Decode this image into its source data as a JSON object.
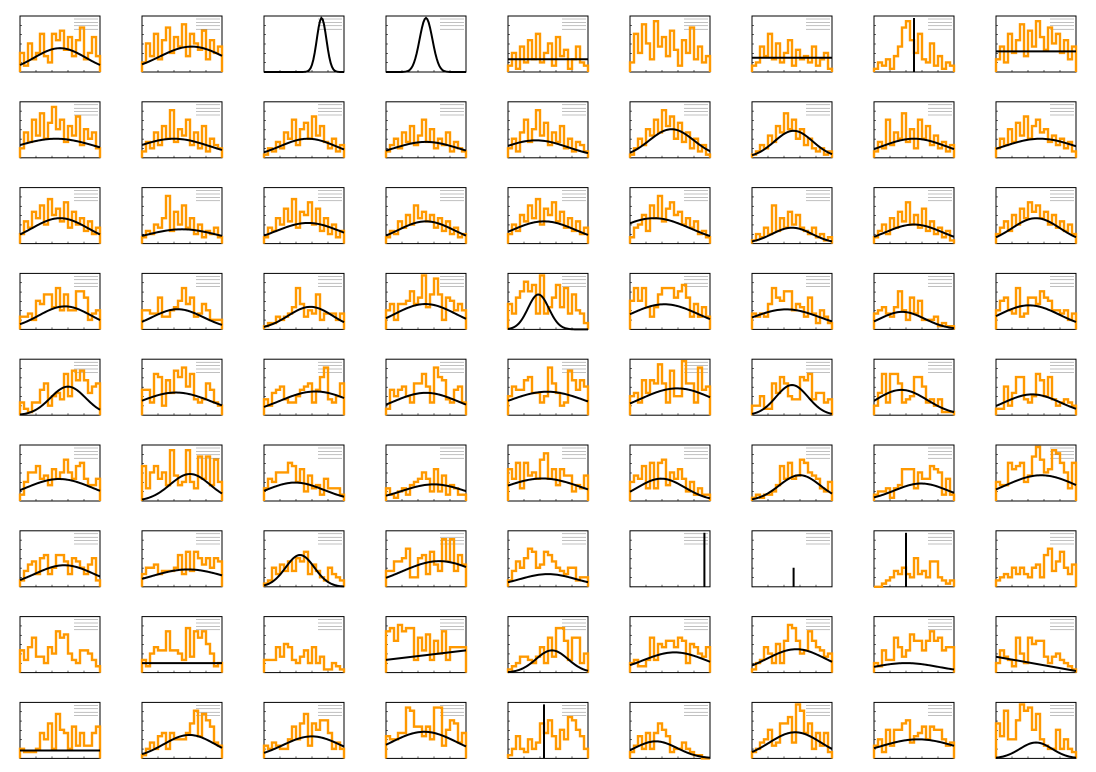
{
  "figure": {
    "rows": 9,
    "cols": 9,
    "histogram_color": "#ff9900",
    "fit_color": "#000000"
  },
  "chart_data": [
    {
      "type": "histogram",
      "panel": 1,
      "values": [
        6,
        2,
        9,
        4,
        6,
        12,
        5,
        3,
        12,
        10,
        13,
        7,
        11,
        5,
        10,
        14,
        4,
        6,
        11,
        5
      ],
      "fit": {
        "shape": "gauss",
        "amp": 7.5,
        "mu": 0.5,
        "sigma": 0.32
      }
    },
    {
      "type": "histogram",
      "panel": 2,
      "values": [
        3,
        9,
        5,
        12,
        4,
        10,
        14,
        6,
        11,
        8,
        15,
        5,
        12,
        9,
        7,
        13,
        4,
        10,
        6,
        8
      ],
      "fit": {
        "shape": "gauss",
        "amp": 8,
        "mu": 0.62,
        "sigma": 0.4
      }
    },
    {
      "type": "histogram",
      "panel": 3,
      "values": [
        0,
        0,
        0,
        0,
        0,
        0,
        0,
        0,
        0,
        0,
        0,
        0,
        0,
        0,
        0,
        0,
        0,
        0,
        0,
        0
      ],
      "fit": {
        "shape": "gauss",
        "amp": 17,
        "mu": 0.72,
        "sigma": 0.06
      }
    },
    {
      "type": "histogram",
      "panel": 4,
      "values": [
        0,
        0,
        0,
        0,
        0,
        0,
        0,
        0,
        0,
        0,
        0,
        0,
        0,
        0,
        0,
        0,
        0,
        0,
        0,
        0
      ],
      "fit": {
        "shape": "gauss",
        "amp": 17,
        "mu": 0.5,
        "sigma": 0.08
      }
    },
    {
      "type": "histogram",
      "panel": 5,
      "values": [
        2,
        6,
        1,
        8,
        3,
        10,
        4,
        12,
        3,
        6,
        9,
        2,
        11,
        5,
        7,
        1,
        4,
        8,
        3,
        2
      ],
      "fit": {
        "shape": "flat",
        "amp": 4
      }
    },
    {
      "type": "histogram",
      "panel": 6,
      "values": [
        3,
        12,
        6,
        15,
        9,
        4,
        16,
        8,
        11,
        5,
        13,
        7,
        2,
        10,
        6,
        14,
        4,
        8,
        3,
        5
      ],
      "fit": {
        "shape": "none"
      }
    },
    {
      "type": "histogram",
      "panel": 7,
      "values": [
        2,
        3,
        8,
        5,
        12,
        4,
        9,
        3,
        6,
        10,
        2,
        7,
        4,
        5,
        3,
        8,
        2,
        4,
        6,
        1
      ],
      "fit": {
        "shape": "flat",
        "amp": 4.5
      }
    },
    {
      "type": "histogram",
      "panel": 8,
      "values": [
        1,
        3,
        2,
        4,
        1,
        5,
        8,
        14,
        16,
        10,
        6,
        12,
        4,
        3,
        9,
        2,
        5,
        1,
        3,
        2
      ],
      "fit": {
        "shape": "spike",
        "amp": 17,
        "mu": 0.5
      }
    },
    {
      "type": "histogram",
      "panel": 9,
      "values": [
        4,
        8,
        3,
        12,
        6,
        10,
        15,
        5,
        13,
        8,
        16,
        11,
        7,
        14,
        9,
        12,
        6,
        10,
        4,
        8
      ],
      "fit": {
        "shape": "flat",
        "amp": 6.5
      }
    },
    {
      "type": "histogram",
      "panel": 10,
      "values": [
        3,
        8,
        5,
        12,
        7,
        14,
        6,
        11,
        16,
        9,
        12,
        5,
        10,
        7,
        13,
        4,
        9,
        6,
        8,
        3
      ],
      "fit": {
        "shape": "gauss",
        "amp": 6,
        "mu": 0.45,
        "sigma": 0.5
      }
    },
    {
      "type": "histogram",
      "panel": 11,
      "values": [
        2,
        5,
        3,
        8,
        4,
        10,
        6,
        15,
        5,
        9,
        7,
        12,
        4,
        8,
        3,
        10,
        2,
        6,
        4,
        3
      ],
      "fit": {
        "shape": "gauss",
        "amp": 6,
        "mu": 0.4,
        "sigma": 0.45
      }
    },
    {
      "type": "histogram",
      "panel": 12,
      "values": [
        1,
        3,
        2,
        5,
        3,
        8,
        6,
        12,
        4,
        9,
        11,
        6,
        13,
        7,
        10,
        5,
        3,
        6,
        2,
        4
      ],
      "fit": {
        "shape": "gauss",
        "amp": 6,
        "mu": 0.55,
        "sigma": 0.35
      }
    },
    {
      "type": "histogram",
      "panel": 13,
      "values": [
        2,
        4,
        6,
        3,
        8,
        5,
        10,
        4,
        7,
        12,
        5,
        9,
        3,
        6,
        4,
        8,
        2,
        5,
        3,
        2
      ],
      "fit": {
        "shape": "gauss",
        "amp": 5,
        "mu": 0.5,
        "sigma": 0.4
      }
    },
    {
      "type": "histogram",
      "panel": 14,
      "values": [
        3,
        6,
        2,
        8,
        12,
        5,
        9,
        15,
        7,
        11,
        4,
        8,
        5,
        10,
        3,
        6,
        2,
        5,
        4,
        2
      ],
      "fit": {
        "shape": "gauss",
        "amp": 5.5,
        "mu": 0.35,
        "sigma": 0.4
      }
    },
    {
      "type": "histogram",
      "panel": 15,
      "values": [
        1,
        3,
        6,
        4,
        9,
        7,
        12,
        8,
        15,
        10,
        13,
        6,
        11,
        5,
        8,
        3,
        6,
        2,
        4,
        1
      ],
      "fit": {
        "shape": "gauss",
        "amp": 9,
        "mu": 0.52,
        "sigma": 0.28
      }
    },
    {
      "type": "histogram",
      "panel": 16,
      "values": [
        1,
        2,
        4,
        3,
        7,
        5,
        10,
        8,
        14,
        9,
        12,
        6,
        9,
        4,
        6,
        3,
        2,
        3,
        1,
        2
      ],
      "fit": {
        "shape": "gauss",
        "amp": 8.5,
        "mu": 0.52,
        "sigma": 0.24
      }
    },
    {
      "type": "histogram",
      "panel": 17,
      "values": [
        2,
        5,
        3,
        12,
        4,
        8,
        6,
        14,
        5,
        9,
        3,
        12,
        6,
        10,
        4,
        7,
        3,
        5,
        2,
        4
      ],
      "fit": {
        "shape": "gauss",
        "amp": 6,
        "mu": 0.5,
        "sigma": 0.4
      }
    },
    {
      "type": "histogram",
      "panel": 18,
      "values": [
        3,
        6,
        4,
        9,
        5,
        11,
        7,
        13,
        6,
        10,
        12,
        8,
        9,
        5,
        7,
        4,
        6,
        3,
        5,
        2
      ],
      "fit": {
        "shape": "gauss",
        "amp": 6,
        "mu": 0.55,
        "sigma": 0.45
      }
    },
    {
      "type": "histogram",
      "panel": 19,
      "values": [
        3,
        7,
        5,
        10,
        8,
        12,
        6,
        14,
        9,
        11,
        7,
        13,
        5,
        10,
        6,
        8,
        4,
        7,
        3,
        5
      ],
      "fit": {
        "shape": "gauss",
        "amp": 8,
        "mu": 0.5,
        "sigma": 0.35
      }
    },
    {
      "type": "histogram",
      "panel": 20,
      "values": [
        2,
        4,
        3,
        6,
        5,
        8,
        15,
        4,
        10,
        6,
        12,
        5,
        8,
        3,
        6,
        2,
        4,
        3,
        5,
        2
      ],
      "fit": {
        "shape": "gauss",
        "amp": 4.5,
        "mu": 0.5,
        "sigma": 0.45
      }
    },
    {
      "type": "histogram",
      "panel": 21,
      "values": [
        2,
        5,
        4,
        8,
        6,
        11,
        7,
        14,
        5,
        10,
        9,
        13,
        6,
        11,
        4,
        8,
        3,
        6,
        2,
        4
      ],
      "fit": {
        "shape": "gauss",
        "amp": 6.5,
        "mu": 0.55,
        "sigma": 0.4
      }
    },
    {
      "type": "histogram",
      "panel": 22,
      "values": [
        2,
        4,
        3,
        7,
        5,
        9,
        6,
        12,
        8,
        10,
        7,
        9,
        5,
        8,
        4,
        7,
        3,
        5,
        2,
        3
      ],
      "fit": {
        "shape": "gauss",
        "amp": 7,
        "mu": 0.5,
        "sigma": 0.35
      }
    },
    {
      "type": "histogram",
      "panel": 23,
      "values": [
        3,
        6,
        4,
        9,
        7,
        12,
        8,
        14,
        6,
        11,
        9,
        13,
        7,
        10,
        5,
        8,
        4,
        7,
        3,
        5
      ],
      "fit": {
        "shape": "gauss",
        "amp": 7,
        "mu": 0.45,
        "sigma": 0.4
      }
    },
    {
      "type": "histogram",
      "panel": 24,
      "values": [
        2,
        5,
        6,
        9,
        4,
        12,
        8,
        15,
        7,
        11,
        13,
        9,
        10,
        6,
        8,
        5,
        7,
        3,
        4,
        2
      ],
      "fit": {
        "shape": "gauss",
        "amp": 8,
        "mu": 0.3,
        "sigma": 0.45
      }
    },
    {
      "type": "histogram",
      "panel": 25,
      "values": [
        1,
        3,
        2,
        5,
        3,
        12,
        4,
        8,
        5,
        10,
        6,
        9,
        5,
        4,
        3,
        5,
        2,
        3,
        1,
        2
      ],
      "fit": {
        "shape": "gauss",
        "amp": 5,
        "mu": 0.5,
        "sigma": 0.25
      }
    },
    {
      "type": "histogram",
      "panel": 26,
      "values": [
        2,
        4,
        6,
        3,
        8,
        5,
        10,
        7,
        13,
        6,
        9,
        5,
        11,
        4,
        7,
        3,
        5,
        2,
        4,
        1
      ],
      "fit": {
        "shape": "gauss",
        "amp": 6,
        "mu": 0.5,
        "sigma": 0.35
      }
    },
    {
      "type": "histogram",
      "panel": 27,
      "values": [
        3,
        5,
        7,
        4,
        9,
        6,
        11,
        8,
        13,
        10,
        12,
        8,
        10,
        6,
        9,
        5,
        7,
        4,
        6,
        3
      ],
      "fit": {
        "shape": "gauss",
        "amp": 8,
        "mu": 0.5,
        "sigma": 0.3
      }
    }
  ]
}
